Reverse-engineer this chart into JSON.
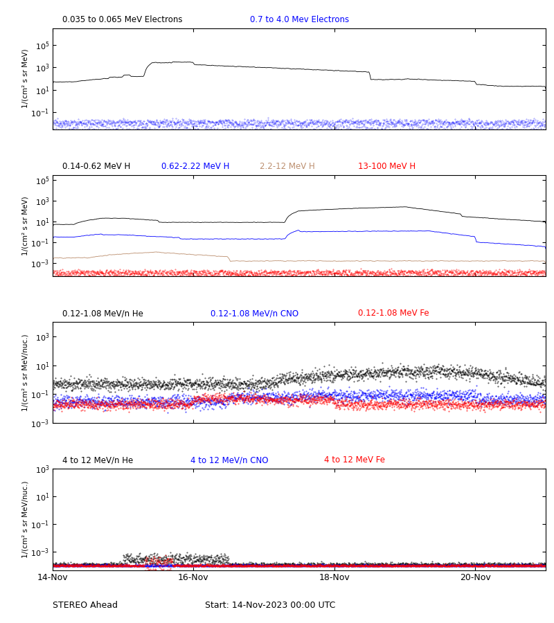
{
  "title_panel1_black": "0.035 to 0.065 MeV Electrons",
  "title_panel1_blue": "0.7 to 4.0 Mev Electrons",
  "title_panel2": [
    "0.14-0.62 MeV H",
    "0.62-2.22 MeV H",
    "2.2-12 MeV H",
    "13-100 MeV H"
  ],
  "title_panel2_colors": [
    "black",
    "blue",
    "#bc8f6f",
    "red"
  ],
  "title_panel3": [
    "0.12-1.08 MeV/n He",
    "0.12-1.08 MeV/n CNO",
    "0.12-1.08 MeV Fe"
  ],
  "title_panel3_colors": [
    "black",
    "blue",
    "red"
  ],
  "title_panel4": [
    "4 to 12 MeV/n He",
    "4 to 12 MeV/n CNO",
    "4 to 12 MeV Fe"
  ],
  "title_panel4_colors": [
    "black",
    "blue",
    "red"
  ],
  "ylabel_panels12": "1/(cm² s sr MeV)",
  "ylabel_panels34": "1/(cm² s sr MeV/nuc.)",
  "xtick_labels": [
    "14-Nov",
    "16-Nov",
    "18-Nov",
    "20-Nov"
  ],
  "panel1_ylim": [
    0.003,
    3000000
  ],
  "panel2_ylim": [
    5e-05,
    300000
  ],
  "panel3_ylim": [
    0.001,
    10000
  ],
  "panel4_ylim": [
    5e-05,
    1000
  ]
}
